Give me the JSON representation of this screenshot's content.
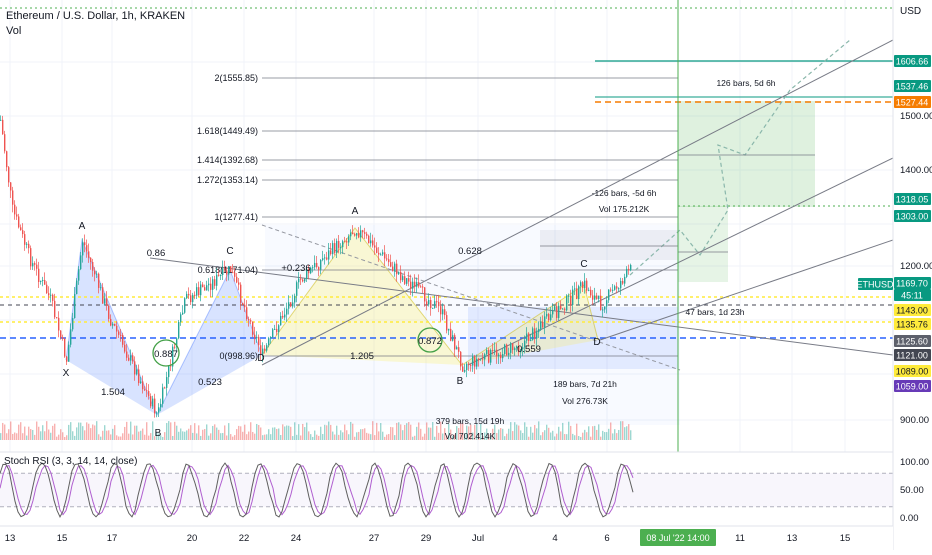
{
  "header": {
    "title": "Ethereum / U.S. Dollar, 1h, KRAKEN",
    "vol_label": "Vol",
    "currency": "USD"
  },
  "chart_data": {
    "type": "line",
    "price_axis_ticks": [
      "1500.00",
      "1400.00",
      "1200.00",
      "900.00"
    ],
    "price_badges": [
      {
        "id": "p1606",
        "label": "1606.66",
        "value": 1606.66,
        "bg": "#089981",
        "fg": "#ffffff"
      },
      {
        "id": "p1537",
        "label": "1537.46",
        "value": 1537.46,
        "bg": "#089981",
        "fg": "#ffffff"
      },
      {
        "id": "p1527",
        "label": "1527.44",
        "value": 1527.44,
        "bg": "#f57c00",
        "fg": "#ffffff"
      },
      {
        "id": "p1318",
        "label": "1318.05",
        "value": 1318.05,
        "bg": "#089981",
        "fg": "#ffffff"
      },
      {
        "id": "p1303",
        "label": "1303.00",
        "value": 1303.0,
        "bg": "#089981",
        "fg": "#ffffff"
      },
      {
        "id": "ticker",
        "label": "ETHUSD",
        "value": null,
        "bg": "#089981",
        "fg": "#ffffff"
      },
      {
        "id": "p1169",
        "label": "1169.70",
        "value": 1169.7,
        "bg": "#089981",
        "fg": "#ffffff"
      },
      {
        "id": "countdown",
        "label": "45:11",
        "value": null,
        "bg": "#089981",
        "fg": "#ffffff"
      },
      {
        "id": "p1143",
        "label": "1143.00",
        "value": 1143.0,
        "bg": "#ffeb3b",
        "fg": "#131722"
      },
      {
        "id": "p1135",
        "label": "1135.76",
        "value": 1135.76,
        "bg": "#ffeb3b",
        "fg": "#131722"
      },
      {
        "id": "p1125",
        "label": "1125.60",
        "value": 1125.6,
        "bg": "#5d606b",
        "fg": "#ffffff"
      },
      {
        "id": "p1121",
        "label": "1121.00",
        "value": 1121.0,
        "bg": "#434651",
        "fg": "#ffffff"
      },
      {
        "id": "p1089",
        "label": "1089.00",
        "value": 1089.0,
        "bg": "#ffeb3b",
        "fg": "#131722"
      },
      {
        "id": "p1059",
        "label": "1059.00",
        "value": 1059.0,
        "bg": "#673ab7",
        "fg": "#ffffff"
      }
    ],
    "x_tick_labels": [
      "13",
      "15",
      "17",
      "20",
      "22",
      "24",
      "27",
      "29",
      "Jul",
      "4",
      "6",
      "11",
      "13",
      "15"
    ],
    "x_cursor_label": "08 Jul '22   14:00",
    "fib_levels": [
      {
        "label": "2(1555.85)",
        "value": 1555.85
      },
      {
        "label": "1.618(1449.49)",
        "value": 1449.49
      },
      {
        "label": "1.414(1392.68)",
        "value": 1392.68
      },
      {
        "label": "1.272(1353.14)",
        "value": 1353.14
      },
      {
        "label": "1(1277.41)",
        "value": 1277.41
      },
      {
        "label": "0.618(1171.04)",
        "value": 1171.04
      },
      {
        "label": "0(998.96)",
        "value": 998.96
      }
    ],
    "pattern_labels": [
      "X",
      "A",
      "B",
      "C",
      "D",
      "A",
      "B",
      "C",
      "D"
    ],
    "ratio_labels": [
      "0.86",
      "1.504",
      "0.523",
      "0.887",
      "+0.236",
      "0.628",
      "1.205",
      "0.872",
      "0.559"
    ],
    "annotations": [
      "126 bars, 5d 6h",
      "-126 bars, -5d 6h",
      "Vol 175.212K",
      "47 bars, 1d 23h",
      "189 bars, 7d 21h",
      "Vol 276.73K",
      "379 bars, 15d 19h",
      "Vol 702.414K"
    ],
    "oscillator": {
      "label": "Stoch RSI (3, 3, 14, 14, close)",
      "ticks": [
        "100.00",
        "50.00",
        "0.00"
      ],
      "ylim": [
        0,
        100
      ]
    },
    "colors": {
      "candle_up": "#26a69a",
      "candle_down": "#ef5350",
      "channel": "#787b86",
      "projection": "#8ab7ab",
      "rsi_k": "#5f5f5f",
      "rsi_d": "#b05fd0"
    }
  }
}
